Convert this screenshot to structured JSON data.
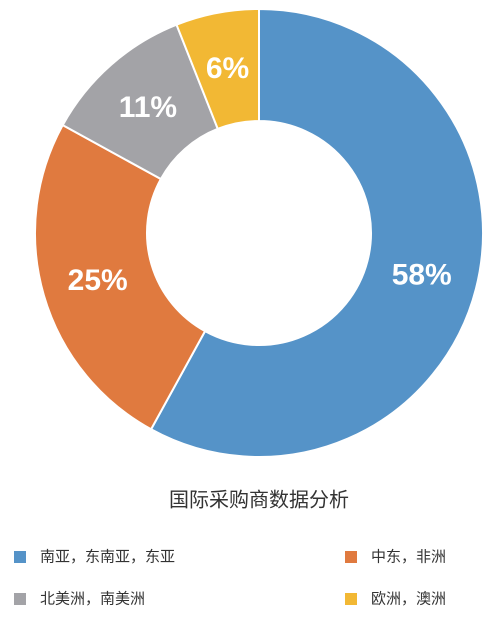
{
  "chart_data": {
    "type": "donut",
    "title": "国际采购商数据分析",
    "categories": [
      "南亚，东南亚，东亚",
      "中东，非洲",
      "北美洲，南美洲",
      "欧洲，澳洲"
    ],
    "values": [
      58,
      25,
      11,
      6
    ],
    "value_labels": [
      "58%",
      "25%",
      "11%",
      "6%"
    ],
    "colors": [
      "#5593c8",
      "#e07a3f",
      "#a3a3a7",
      "#f2b834"
    ]
  }
}
